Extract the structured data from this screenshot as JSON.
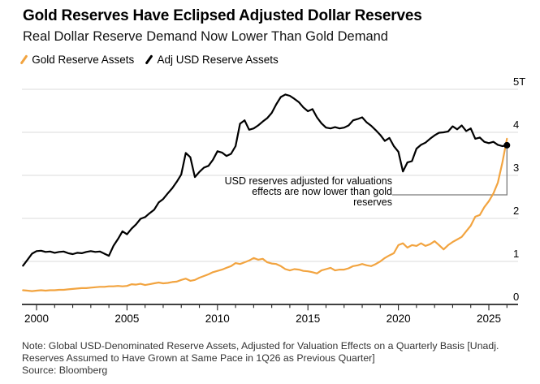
{
  "header": {
    "title": "Gold Reserves Have Eclipsed Adjusted Dollar Reserves",
    "subtitle": "Real Dollar Reserve Demand Now Lower Than Gold Demand"
  },
  "legend": [
    {
      "label": "Gold Reserve Assets",
      "color": "#F2A440"
    },
    {
      "label": "Adj USD Reserve Assets",
      "color": "#000000"
    }
  ],
  "footer": {
    "lines": [
      "Note: Global USD-Denominated Reserve Assets, Adjusted for Valuation Effects on a Quarterly Basis [Unadj.",
      "Reserves Assumed to Have Grown at Same Pace in 1Q26 as Previous Quarter]",
      "Source: Bloomberg"
    ]
  },
  "chart_data": {
    "type": "line",
    "title": "Gold Reserves Have Eclipsed Adjusted Dollar Reserves",
    "subtitle": "Real Dollar Reserve Demand Now Lower Than Gold Demand",
    "x_axis": {
      "range": [
        1999.2,
        2026.6
      ],
      "labeled_ticks": [
        2000,
        2005,
        2010,
        2015,
        2020,
        2025
      ],
      "minor_tick_step_years": 1,
      "first_tick": 2000,
      "last_tick": 2026
    },
    "y_axis": {
      "range": [
        0,
        5
      ],
      "unit": "trillion USD",
      "values": [
        0,
        1,
        2,
        3,
        4,
        5
      ],
      "labels": [
        "0",
        "1",
        "2",
        "3",
        "4",
        "5T"
      ],
      "side": "right",
      "grid": true
    },
    "style": {
      "grid_color": "#DBDBDB",
      "axis_color": "#000000",
      "tick_color": "#222222",
      "connector_color": "#7A7A7A",
      "background": "#FFFFFF"
    },
    "annotation": {
      "lines": [
        "USD reserves adjusted for valuations",
        "effects are now lower than gold",
        "reserves"
      ],
      "align": "right",
      "points_to": "end of series at 1Q26"
    },
    "series": [
      {
        "name": "Gold Reserve Assets",
        "color": "#F2A440",
        "width": 2.2,
        "end_dot": false,
        "points": [
          [
            1999.25,
            0.33
          ],
          [
            1999.5,
            0.32
          ],
          [
            1999.75,
            0.31
          ],
          [
            2000,
            0.32
          ],
          [
            2000.25,
            0.33
          ],
          [
            2000.5,
            0.32
          ],
          [
            2000.75,
            0.33
          ],
          [
            2001,
            0.33
          ],
          [
            2001.25,
            0.34
          ],
          [
            2001.5,
            0.34
          ],
          [
            2001.75,
            0.35
          ],
          [
            2002,
            0.36
          ],
          [
            2002.25,
            0.37
          ],
          [
            2002.5,
            0.38
          ],
          [
            2002.75,
            0.38
          ],
          [
            2003,
            0.39
          ],
          [
            2003.25,
            0.4
          ],
          [
            2003.5,
            0.41
          ],
          [
            2003.75,
            0.41
          ],
          [
            2004,
            0.42
          ],
          [
            2004.25,
            0.42
          ],
          [
            2004.5,
            0.43
          ],
          [
            2004.75,
            0.42
          ],
          [
            2005,
            0.43
          ],
          [
            2005.25,
            0.47
          ],
          [
            2005.5,
            0.46
          ],
          [
            2005.75,
            0.48
          ],
          [
            2006,
            0.45
          ],
          [
            2006.25,
            0.47
          ],
          [
            2006.5,
            0.49
          ],
          [
            2006.75,
            0.51
          ],
          [
            2007,
            0.49
          ],
          [
            2007.25,
            0.5
          ],
          [
            2007.5,
            0.52
          ],
          [
            2007.75,
            0.53
          ],
          [
            2008,
            0.57
          ],
          [
            2008.25,
            0.6
          ],
          [
            2008.5,
            0.55
          ],
          [
            2008.75,
            0.57
          ],
          [
            2009,
            0.62
          ],
          [
            2009.25,
            0.66
          ],
          [
            2009.5,
            0.7
          ],
          [
            2009.75,
            0.75
          ],
          [
            2010,
            0.78
          ],
          [
            2010.25,
            0.81
          ],
          [
            2010.5,
            0.85
          ],
          [
            2010.75,
            0.89
          ],
          [
            2011,
            0.96
          ],
          [
            2011.25,
            0.94
          ],
          [
            2011.5,
            0.98
          ],
          [
            2011.75,
            1.02
          ],
          [
            2012,
            1.08
          ],
          [
            2012.25,
            1.04
          ],
          [
            2012.5,
            1.06
          ],
          [
            2012.75,
            0.98
          ],
          [
            2013,
            0.95
          ],
          [
            2013.25,
            0.94
          ],
          [
            2013.5,
            0.89
          ],
          [
            2013.75,
            0.82
          ],
          [
            2014,
            0.79
          ],
          [
            2014.25,
            0.82
          ],
          [
            2014.5,
            0.81
          ],
          [
            2014.75,
            0.78
          ],
          [
            2015,
            0.77
          ],
          [
            2015.25,
            0.75
          ],
          [
            2015.5,
            0.72
          ],
          [
            2015.75,
            0.79
          ],
          [
            2016,
            0.82
          ],
          [
            2016.25,
            0.85
          ],
          [
            2016.5,
            0.79
          ],
          [
            2016.75,
            0.81
          ],
          [
            2017,
            0.81
          ],
          [
            2017.25,
            0.84
          ],
          [
            2017.5,
            0.89
          ],
          [
            2017.75,
            0.91
          ],
          [
            2018,
            0.94
          ],
          [
            2018.25,
            0.91
          ],
          [
            2018.5,
            0.89
          ],
          [
            2018.75,
            0.94
          ],
          [
            2019,
            1.0
          ],
          [
            2019.25,
            1.08
          ],
          [
            2019.5,
            1.14
          ],
          [
            2019.75,
            1.19
          ],
          [
            2020,
            1.38
          ],
          [
            2020.25,
            1.42
          ],
          [
            2020.5,
            1.32
          ],
          [
            2020.75,
            1.38
          ],
          [
            2021,
            1.36
          ],
          [
            2021.25,
            1.42
          ],
          [
            2021.5,
            1.36
          ],
          [
            2021.75,
            1.4
          ],
          [
            2022,
            1.47
          ],
          [
            2022.25,
            1.38
          ],
          [
            2022.5,
            1.28
          ],
          [
            2022.75,
            1.38
          ],
          [
            2023,
            1.45
          ],
          [
            2023.25,
            1.51
          ],
          [
            2023.5,
            1.57
          ],
          [
            2023.75,
            1.7
          ],
          [
            2024,
            1.83
          ],
          [
            2024.25,
            2.04
          ],
          [
            2024.5,
            2.08
          ],
          [
            2024.75,
            2.26
          ],
          [
            2025,
            2.4
          ],
          [
            2025.25,
            2.58
          ],
          [
            2025.5,
            2.83
          ],
          [
            2025.75,
            3.3
          ],
          [
            2026,
            3.85
          ]
        ]
      },
      {
        "name": "Adj USD Reserve Assets",
        "color": "#000000",
        "width": 2.2,
        "end_dot": true,
        "points": [
          [
            1999.25,
            0.9
          ],
          [
            1999.5,
            1.04
          ],
          [
            1999.75,
            1.18
          ],
          [
            2000,
            1.24
          ],
          [
            2000.25,
            1.25
          ],
          [
            2000.5,
            1.22
          ],
          [
            2000.75,
            1.23
          ],
          [
            2001,
            1.2
          ],
          [
            2001.25,
            1.22
          ],
          [
            2001.5,
            1.23
          ],
          [
            2001.75,
            1.19
          ],
          [
            2002,
            1.17
          ],
          [
            2002.25,
            1.2
          ],
          [
            2002.5,
            1.19
          ],
          [
            2002.75,
            1.22
          ],
          [
            2003,
            1.24
          ],
          [
            2003.25,
            1.22
          ],
          [
            2003.5,
            1.23
          ],
          [
            2003.75,
            1.18
          ],
          [
            2004,
            1.13
          ],
          [
            2004.25,
            1.36
          ],
          [
            2004.5,
            1.52
          ],
          [
            2004.75,
            1.7
          ],
          [
            2005,
            1.63
          ],
          [
            2005.25,
            1.76
          ],
          [
            2005.5,
            1.86
          ],
          [
            2005.75,
            1.99
          ],
          [
            2006,
            2.03
          ],
          [
            2006.25,
            2.12
          ],
          [
            2006.5,
            2.2
          ],
          [
            2006.75,
            2.37
          ],
          [
            2007,
            2.45
          ],
          [
            2007.25,
            2.58
          ],
          [
            2007.5,
            2.7
          ],
          [
            2007.75,
            2.85
          ],
          [
            2008,
            3.02
          ],
          [
            2008.25,
            3.52
          ],
          [
            2008.5,
            3.42
          ],
          [
            2008.75,
            2.96
          ],
          [
            2009,
            3.08
          ],
          [
            2009.25,
            3.18
          ],
          [
            2009.5,
            3.22
          ],
          [
            2009.75,
            3.36
          ],
          [
            2010,
            3.56
          ],
          [
            2010.25,
            3.53
          ],
          [
            2010.5,
            3.45
          ],
          [
            2010.75,
            3.5
          ],
          [
            2011,
            3.68
          ],
          [
            2011.25,
            4.2
          ],
          [
            2011.5,
            4.28
          ],
          [
            2011.75,
            4.06
          ],
          [
            2012,
            4.09
          ],
          [
            2012.25,
            4.16
          ],
          [
            2012.5,
            4.25
          ],
          [
            2012.75,
            4.33
          ],
          [
            2013,
            4.45
          ],
          [
            2013.25,
            4.65
          ],
          [
            2013.5,
            4.82
          ],
          [
            2013.75,
            4.88
          ],
          [
            2014,
            4.85
          ],
          [
            2014.25,
            4.78
          ],
          [
            2014.5,
            4.7
          ],
          [
            2014.75,
            4.58
          ],
          [
            2015,
            4.49
          ],
          [
            2015.25,
            4.54
          ],
          [
            2015.5,
            4.35
          ],
          [
            2015.75,
            4.21
          ],
          [
            2016,
            4.11
          ],
          [
            2016.25,
            4.09
          ],
          [
            2016.5,
            4.12
          ],
          [
            2016.75,
            4.09
          ],
          [
            2017,
            4.11
          ],
          [
            2017.25,
            4.16
          ],
          [
            2017.5,
            4.28
          ],
          [
            2017.75,
            4.31
          ],
          [
            2018,
            4.35
          ],
          [
            2018.25,
            4.23
          ],
          [
            2018.5,
            4.15
          ],
          [
            2018.75,
            4.05
          ],
          [
            2019,
            3.94
          ],
          [
            2019.25,
            3.8
          ],
          [
            2019.5,
            3.87
          ],
          [
            2019.75,
            3.68
          ],
          [
            2020,
            3.55
          ],
          [
            2020.25,
            3.09
          ],
          [
            2020.5,
            3.3
          ],
          [
            2020.75,
            3.33
          ],
          [
            2021,
            3.62
          ],
          [
            2021.25,
            3.71
          ],
          [
            2021.5,
            3.76
          ],
          [
            2021.75,
            3.85
          ],
          [
            2022,
            3.93
          ],
          [
            2022.25,
            3.99
          ],
          [
            2022.5,
            4.0
          ],
          [
            2022.75,
            4.02
          ],
          [
            2023,
            4.14
          ],
          [
            2023.25,
            4.07
          ],
          [
            2023.5,
            4.16
          ],
          [
            2023.75,
            4.03
          ],
          [
            2024,
            4.09
          ],
          [
            2024.25,
            3.85
          ],
          [
            2024.5,
            3.88
          ],
          [
            2024.75,
            3.78
          ],
          [
            2025,
            3.75
          ],
          [
            2025.25,
            3.78
          ],
          [
            2025.5,
            3.71
          ],
          [
            2025.75,
            3.68
          ],
          [
            2026,
            3.7
          ]
        ]
      }
    ]
  }
}
